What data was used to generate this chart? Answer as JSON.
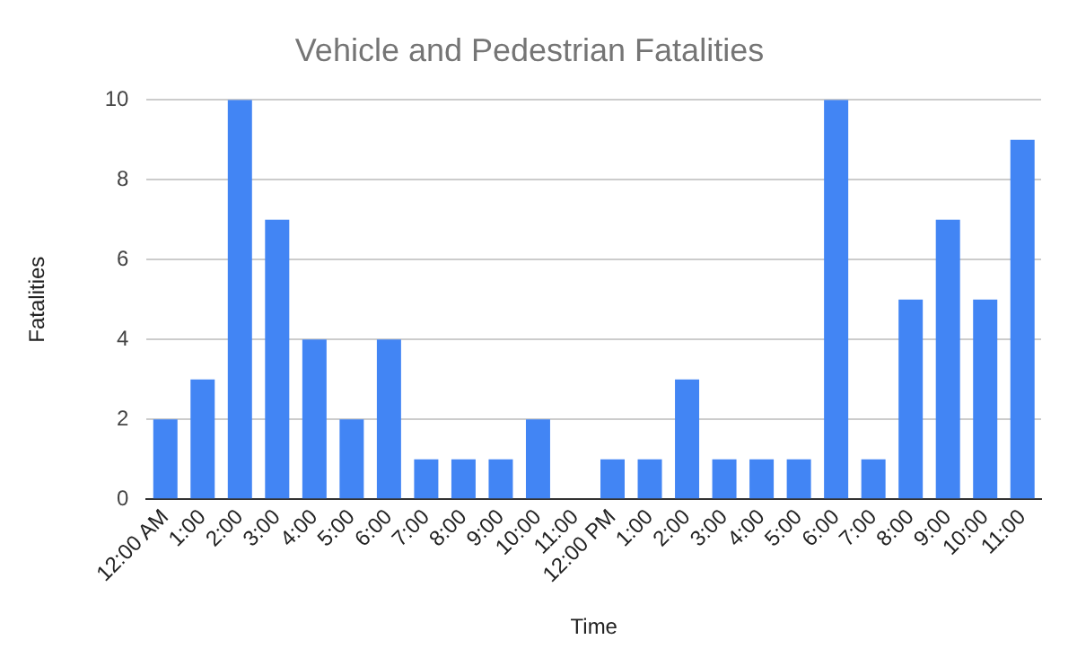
{
  "chart_data": {
    "type": "bar",
    "title": "Vehicle and Pedestrian Fatalities",
    "xlabel": "Time",
    "ylabel": "Fatalities",
    "categories": [
      "12:00 AM",
      "1:00",
      "2:00",
      "3:00",
      "4:00",
      "5:00",
      "6:00",
      "7:00",
      "8:00",
      "9:00",
      "10:00",
      "11:00",
      "12:00 PM",
      "1:00",
      "2:00",
      "3:00",
      "4:00",
      "5:00",
      "6:00",
      "7:00",
      "8:00",
      "9:00",
      "10:00",
      "11:00"
    ],
    "values": [
      2,
      3,
      10,
      7,
      4,
      2,
      4,
      1,
      1,
      1,
      2,
      0,
      1,
      1,
      3,
      1,
      1,
      1,
      10,
      1,
      5,
      7,
      5,
      9
    ],
    "color": "#4285f4",
    "ylim": [
      0,
      10
    ],
    "yticks": [
      0,
      2,
      4,
      6,
      8,
      10
    ],
    "grid": "y"
  }
}
